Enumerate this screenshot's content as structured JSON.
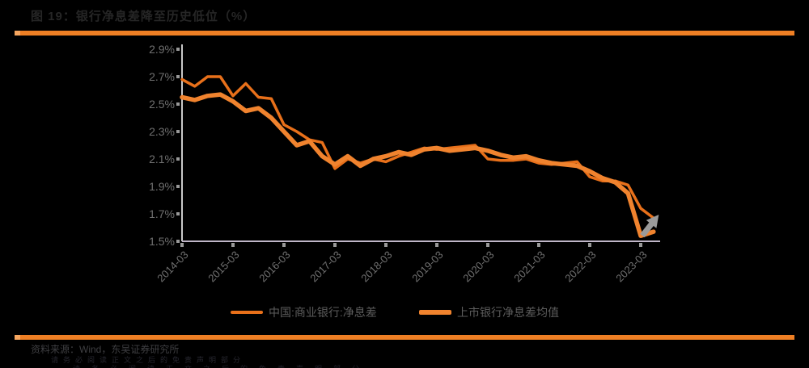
{
  "header": {
    "title": "图 19：银行净息差降至历史低位（%）",
    "accent_color": "#EE7F24"
  },
  "chart_data": {
    "type": "line",
    "title": "图 19：银行净息差降至历史低位（%）",
    "xlabel": "",
    "ylabel": "",
    "ylim": [
      1.5,
      2.9
    ],
    "y_tick_labels": [
      "2.9%",
      "2.7%",
      "2.5%",
      "2.3%",
      "2.1%",
      "1.9%",
      "1.7%",
      "1.5%"
    ],
    "x_tick_labels": [
      "2014-03",
      "2015-03",
      "2016-03",
      "2017-03",
      "2018-03",
      "2019-03",
      "2020-03",
      "2021-03",
      "2022-03",
      "2023-03"
    ],
    "x_frequency": "quarterly",
    "grid": false,
    "legend_position": "bottom",
    "axis_color": "#C0B6C8",
    "tick_color": "#9A9A9A",
    "label_color": "#6F6F6F",
    "series": [
      {
        "name": "中国:商业银行:净息差",
        "color": "#E8701A",
        "width": 3.5,
        "values": [
          2.68,
          2.63,
          2.7,
          2.7,
          2.56,
          2.65,
          2.55,
          2.54,
          2.35,
          2.3,
          2.24,
          2.22,
          2.03,
          2.1,
          2.07,
          2.1,
          2.08,
          2.12,
          2.15,
          2.18,
          2.17,
          2.18,
          2.19,
          2.2,
          2.1,
          2.09,
          2.09,
          2.1,
          2.07,
          2.06,
          2.07,
          2.08,
          1.97,
          1.94,
          1.94,
          1.91,
          1.74,
          1.67
        ]
      },
      {
        "name": "上市银行净息差均值",
        "color": "#F0832E",
        "width": 5.5,
        "values": [
          2.55,
          2.53,
          2.56,
          2.57,
          2.52,
          2.45,
          2.47,
          2.4,
          2.3,
          2.2,
          2.23,
          2.12,
          2.06,
          2.12,
          2.05,
          2.1,
          2.12,
          2.15,
          2.13,
          2.17,
          2.18,
          2.16,
          2.17,
          2.18,
          2.16,
          2.13,
          2.11,
          2.12,
          2.09,
          2.07,
          2.06,
          2.05,
          2.01,
          1.96,
          1.93,
          1.85,
          1.54,
          1.57
        ]
      }
    ],
    "annotations": [
      {
        "type": "arrow",
        "direction": "up-right",
        "color": "#9B9B9B",
        "meaning": "expected rebound at end of series"
      }
    ]
  },
  "footer": {
    "source": "资料来源：Wind，东吴证券研究所",
    "disclaimer": "请务必阅读正文之后的免责声明部分",
    "clipped_text": "请务必阅读正文之后的免责声明部分"
  }
}
